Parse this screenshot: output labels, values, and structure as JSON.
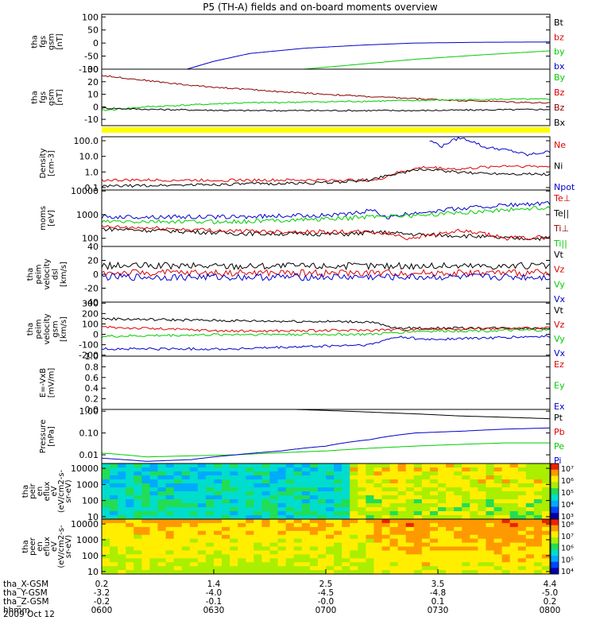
{
  "title": "P5 (TH-A) fields and on-board moments overview",
  "date": "2009 Oct 12",
  "colors": {
    "black": "#000000",
    "red": "#dd0000",
    "green": "#00cc00",
    "blue": "#0000cc",
    "darkred": "#8b0000",
    "yellow": "#ffff00"
  },
  "chart_data": [
    {
      "type": "line",
      "ylabel": [
        "tha",
        "fgs",
        "gsm",
        "[nT]"
      ],
      "ylim": [
        -100,
        110
      ],
      "yticks": [
        100,
        50,
        0,
        -50,
        -100
      ],
      "legend": [
        {
          "label": "Bt",
          "color": "black"
        },
        {
          "label": "bz",
          "color": "red"
        },
        {
          "label": "by",
          "color": "green"
        },
        {
          "label": "bx",
          "color": "blue"
        }
      ],
      "series": [
        {
          "name": "bx",
          "color": "blue",
          "x": [
            0.19,
            0.25,
            0.33,
            0.45,
            0.58,
            0.7,
            0.85,
            1.0
          ],
          "y": [
            -100,
            -70,
            -40,
            -20,
            -8,
            0,
            3,
            4
          ]
        },
        {
          "name": "by",
          "color": "green",
          "x": [
            0.45,
            0.55,
            0.7,
            0.85,
            1.0
          ],
          "y": [
            -100,
            -85,
            -62,
            -45,
            -30
          ]
        }
      ]
    },
    {
      "type": "line",
      "ylabel": [
        "tha",
        "fgs",
        "gsm",
        "[nT]"
      ],
      "ylim": [
        -15,
        30
      ],
      "yticks": [
        30,
        20,
        10,
        0,
        -10
      ],
      "legend": [
        {
          "label": "By",
          "color": "green"
        },
        {
          "label": "Bz",
          "color": "red"
        },
        {
          "label": "Bz",
          "color": "darkred"
        },
        {
          "label": "Bx",
          "color": "black"
        }
      ],
      "series": [
        {
          "name": "Bz",
          "color": "darkred",
          "x": [
            0,
            0.05,
            0.2,
            0.4,
            0.6,
            0.8,
            1.0
          ],
          "y": [
            25,
            23,
            17,
            12,
            8,
            5,
            3
          ]
        },
        {
          "name": "By",
          "color": "green",
          "x": [
            0,
            0.1,
            0.3,
            0.5,
            0.7,
            0.9,
            1.0
          ],
          "y": [
            -3,
            0,
            3,
            4,
            5,
            6,
            6
          ]
        },
        {
          "name": "Bx",
          "color": "black",
          "x": [
            0,
            0.1,
            0.3,
            0.5,
            0.7,
            1.0
          ],
          "y": [
            -1,
            -2,
            -3,
            -3,
            -3,
            -2
          ]
        }
      ]
    },
    {
      "type": "line",
      "ylabel": [
        "Density",
        "[cm-3]"
      ],
      "log": true,
      "ylim": [
        0.07,
        180
      ],
      "yticks": [
        {
          "v": 100,
          "t": "100.0"
        },
        {
          "v": 10,
          "t": "10.0"
        },
        {
          "v": 1,
          "t": "1.0"
        },
        {
          "v": 0.1,
          "t": "0.1"
        }
      ],
      "legend": [
        {
          "label": "Ne",
          "color": "red"
        },
        {
          "label": "Ni",
          "color": "black"
        },
        {
          "label": "Npot",
          "color": "blue"
        }
      ],
      "series": [
        {
          "name": "Ne",
          "color": "red",
          "x": [
            0,
            0.5,
            0.62,
            0.68,
            0.72,
            0.8,
            0.9,
            1.0
          ],
          "y": [
            0.3,
            0.3,
            0.3,
            1.2,
            2.0,
            1.5,
            2.5,
            2.2
          ]
        },
        {
          "name": "Ni",
          "color": "black",
          "x": [
            0,
            0.2,
            0.5,
            0.6,
            0.66,
            0.72,
            0.8,
            0.9,
            1.0
          ],
          "y": [
            0.12,
            0.15,
            0.2,
            0.3,
            0.8,
            1.5,
            0.9,
            0.8,
            0.7
          ]
        },
        {
          "name": "Npot",
          "color": "blue",
          "x": [
            0.73,
            0.76,
            0.8,
            0.85,
            0.95,
            1.0
          ],
          "y": [
            100,
            40,
            150,
            40,
            12,
            20
          ]
        }
      ]
    },
    {
      "type": "line",
      "ylabel": [
        "moms",
        "[eV]"
      ],
      "log": true,
      "ylim": [
        45,
        11000
      ],
      "yticks": [
        {
          "v": 10000,
          "t": "10000"
        },
        {
          "v": 1000,
          "t": "1000"
        },
        {
          "v": 100,
          "t": "100"
        }
      ],
      "legend": [
        {
          "label": "Te⊥",
          "color": "red"
        },
        {
          "label": "Te||",
          "color": "black"
        },
        {
          "label": "Ti⊥",
          "color": "darkred"
        },
        {
          "label": "Ti||",
          "color": "green"
        }
      ],
      "series": [
        {
          "name": "Ti",
          "color": "blue",
          "x": [
            0,
            0.3,
            0.55,
            0.6,
            0.64,
            0.7,
            0.8,
            0.9,
            1.0
          ],
          "y": [
            800,
            800,
            1000,
            1500,
            700,
            1200,
            1800,
            2500,
            3000
          ]
        },
        {
          "name": "Ti||",
          "color": "green",
          "x": [
            0,
            0.3,
            0.55,
            0.62,
            0.7,
            0.8,
            1.0
          ],
          "y": [
            500,
            500,
            700,
            900,
            900,
            1200,
            2000
          ]
        },
        {
          "name": "Te",
          "color": "black",
          "x": [
            0,
            0.3,
            0.55,
            0.62,
            0.66,
            0.72,
            0.8,
            0.9,
            1.0
          ],
          "y": [
            250,
            160,
            150,
            180,
            160,
            140,
            130,
            100,
            100
          ]
        },
        {
          "name": "Te⊥",
          "color": "red",
          "x": [
            0,
            0.3,
            0.6,
            0.64,
            0.68,
            0.74,
            0.8,
            0.9,
            1.0
          ],
          "y": [
            300,
            200,
            180,
            160,
            100,
            140,
            200,
            100,
            110
          ]
        }
      ]
    },
    {
      "type": "line",
      "ylabel": [
        "tha",
        "peim",
        "velocity",
        "dsl",
        "[km/s]"
      ],
      "ylim": [
        -40,
        40
      ],
      "yticks": [
        40,
        20,
        0,
        -20,
        -40
      ],
      "legend": [
        {
          "label": "Vt",
          "color": "black"
        },
        {
          "label": "Vz",
          "color": "red"
        },
        {
          "label": "Vy",
          "color": "green"
        },
        {
          "label": "Vx",
          "color": "blue"
        }
      ],
      "series": [
        {
          "name": "Vt",
          "color": "black",
          "x": [
            0,
            1
          ],
          "y": [
            12,
            12
          ]
        },
        {
          "name": "Vz",
          "color": "red",
          "x": [
            0,
            1
          ],
          "y": [
            2,
            2
          ]
        },
        {
          "name": "Vx",
          "color": "blue",
          "x": [
            0,
            1
          ],
          "y": [
            -4,
            -4
          ]
        }
      ]
    },
    {
      "type": "line",
      "ylabel": [
        "tha",
        "peim",
        "velocity",
        "gsm",
        "[km/s]"
      ],
      "ylim": [
        -210,
        310
      ],
      "yticks": [
        300,
        200,
        100,
        0,
        -100,
        -200
      ],
      "legend": [
        {
          "label": "Vt",
          "color": "black"
        },
        {
          "label": "Vz",
          "color": "red"
        },
        {
          "label": "Vy",
          "color": "green"
        },
        {
          "label": "Vx",
          "color": "blue"
        }
      ],
      "series": [
        {
          "name": "Vt",
          "color": "black",
          "x": [
            0,
            0.3,
            0.6,
            0.65,
            0.8,
            1.0
          ],
          "y": [
            150,
            130,
            120,
            60,
            60,
            60
          ]
        },
        {
          "name": "Vz",
          "color": "red",
          "x": [
            0,
            0.3,
            0.6,
            0.7,
            1.0
          ],
          "y": [
            70,
            30,
            40,
            50,
            60
          ]
        },
        {
          "name": "Vy",
          "color": "green",
          "x": [
            0,
            0.3,
            0.6,
            0.7,
            1.0
          ],
          "y": [
            -20,
            0,
            0,
            30,
            40
          ]
        },
        {
          "name": "Vx",
          "color": "blue",
          "x": [
            0,
            0.3,
            0.6,
            0.66,
            0.72,
            1.0
          ],
          "y": [
            -140,
            -140,
            -100,
            -20,
            -50,
            -20
          ]
        }
      ]
    },
    {
      "type": "line",
      "ylabel": [
        "E=-VxB",
        "[mV/m]"
      ],
      "ylim": [
        0,
        1
      ],
      "yticks": [
        {
          "v": 1,
          "t": "1.0"
        },
        {
          "v": 0.8,
          "t": "0.8"
        },
        {
          "v": 0.6,
          "t": "0.6"
        },
        {
          "v": 0.4,
          "t": "0.4"
        },
        {
          "v": 0.2,
          "t": "0.2"
        },
        {
          "v": 0,
          "t": "0.0"
        }
      ],
      "legend": [
        {
          "label": "Ez",
          "color": "red"
        },
        {
          "label": "Ey",
          "color": "green"
        },
        {
          "label": "Ex",
          "color": "blue"
        }
      ],
      "series": []
    },
    {
      "type": "line",
      "ylabel": [
        "Pressure",
        "[nPa]"
      ],
      "log": true,
      "ylim": [
        0.004,
        1.2
      ],
      "yticks": [
        {
          "v": 1,
          "t": "1.00"
        },
        {
          "v": 0.1,
          "t": "0.10"
        },
        {
          "v": 0.01,
          "t": "0.01"
        }
      ],
      "legend": [
        {
          "label": "Pt",
          "color": "black"
        },
        {
          "label": "Pb",
          "color": "red"
        },
        {
          "label": "Pe",
          "color": "green"
        },
        {
          "label": "Pi",
          "color": "blue"
        }
      ],
      "series": [
        {
          "name": "Pt",
          "color": "black",
          "x": [
            0.43,
            0.6,
            0.8,
            1.0
          ],
          "y": [
            1.2,
            0.9,
            0.6,
            0.45
          ]
        },
        {
          "name": "Pe",
          "color": "green",
          "x": [
            0,
            0.1,
            0.3,
            0.5,
            0.6,
            0.7,
            0.8,
            0.9,
            1.0
          ],
          "y": [
            0.012,
            0.008,
            0.01,
            0.015,
            0.02,
            0.025,
            0.03,
            0.035,
            0.035
          ]
        },
        {
          "name": "Pi",
          "color": "blue",
          "x": [
            0,
            0.1,
            0.2,
            0.3,
            0.4,
            0.5,
            0.6,
            0.7,
            0.8,
            0.9,
            1.0
          ],
          "y": [
            0.007,
            0.005,
            0.006,
            0.01,
            0.015,
            0.025,
            0.05,
            0.1,
            0.12,
            0.15,
            0.17
          ]
        }
      ]
    },
    {
      "type": "heatmap",
      "ylabel": [
        "tha",
        "peir",
        "en",
        "eflux",
        "eV",
        "(eV/cm2-s-",
        "sr-eV)"
      ],
      "log": true,
      "ylim": [
        7,
        20000
      ],
      "yticks": [
        {
          "v": 10000,
          "t": "10000"
        },
        {
          "v": 1000,
          "t": "1000"
        },
        {
          "v": 100,
          "t": "100"
        },
        {
          "v": 10,
          "t": "10"
        }
      ],
      "colorbar_ticks": [
        "10⁷",
        "10⁶",
        "10⁵",
        "10⁴",
        "10³"
      ]
    },
    {
      "type": "heatmap",
      "ylabel": [
        "tha",
        "peer",
        "en",
        "eflux",
        "eV",
        "(eV/cm2-s-",
        "sr-eV)"
      ],
      "log": true,
      "ylim": [
        7,
        20000
      ],
      "yticks": [
        {
          "v": 10000,
          "t": "10000"
        },
        {
          "v": 1000,
          "t": "1000"
        },
        {
          "v": 100,
          "t": "100"
        },
        {
          "v": 10,
          "t": "10"
        }
      ],
      "colorbar_ticks": [
        "10⁸",
        "10⁷",
        "10⁶",
        "10⁵",
        "10⁴"
      ]
    }
  ],
  "xaxis": {
    "rows": [
      {
        "label": "tha_X-GSM",
        "values": [
          "0.2",
          "1.4",
          "2.5",
          "3.5",
          "4.4"
        ]
      },
      {
        "label": "tha_Y-GSM",
        "values": [
          "-3.2",
          "-4.0",
          "-4.5",
          "-4.8",
          "-5.0"
        ]
      },
      {
        "label": "tha_Z-GSM",
        "values": [
          "-0.2",
          "-0.1",
          "-0.0",
          "0.1",
          "0.2"
        ]
      },
      {
        "label": "hhmm",
        "values": [
          "0600",
          "0630",
          "0700",
          "0730",
          "0800"
        ]
      }
    ]
  }
}
